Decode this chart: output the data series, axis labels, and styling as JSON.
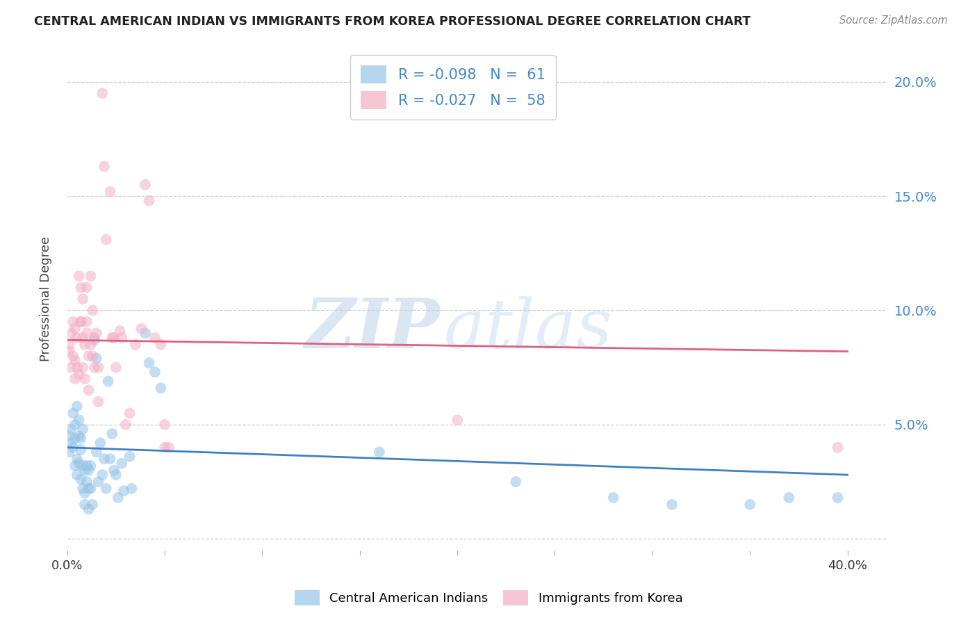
{
  "title": "CENTRAL AMERICAN INDIAN VS IMMIGRANTS FROM KOREA PROFESSIONAL DEGREE CORRELATION CHART",
  "source": "Source: ZipAtlas.com",
  "ylabel": "Professional Degree",
  "yticks": [
    0.0,
    0.05,
    0.1,
    0.15,
    0.2
  ],
  "xlim": [
    0.0,
    0.42
  ],
  "ylim": [
    -0.005,
    0.215
  ],
  "blue_scatter": [
    [
      0.001,
      0.045
    ],
    [
      0.002,
      0.048
    ],
    [
      0.001,
      0.038
    ],
    [
      0.002,
      0.042
    ],
    [
      0.003,
      0.055
    ],
    [
      0.003,
      0.04
    ],
    [
      0.004,
      0.05
    ],
    [
      0.004,
      0.044
    ],
    [
      0.004,
      0.032
    ],
    [
      0.005,
      0.058
    ],
    [
      0.005,
      0.035
    ],
    [
      0.005,
      0.028
    ],
    [
      0.006,
      0.052
    ],
    [
      0.006,
      0.045
    ],
    [
      0.006,
      0.033
    ],
    [
      0.007,
      0.044
    ],
    [
      0.007,
      0.039
    ],
    [
      0.007,
      0.026
    ],
    [
      0.008,
      0.048
    ],
    [
      0.008,
      0.032
    ],
    [
      0.008,
      0.022
    ],
    [
      0.009,
      0.03
    ],
    [
      0.009,
      0.02
    ],
    [
      0.009,
      0.015
    ],
    [
      0.01,
      0.032
    ],
    [
      0.01,
      0.025
    ],
    [
      0.011,
      0.03
    ],
    [
      0.011,
      0.022
    ],
    [
      0.011,
      0.013
    ],
    [
      0.012,
      0.032
    ],
    [
      0.012,
      0.022
    ],
    [
      0.013,
      0.015
    ],
    [
      0.014,
      0.087
    ],
    [
      0.015,
      0.079
    ],
    [
      0.015,
      0.038
    ],
    [
      0.016,
      0.025
    ],
    [
      0.017,
      0.042
    ],
    [
      0.018,
      0.028
    ],
    [
      0.019,
      0.035
    ],
    [
      0.02,
      0.022
    ],
    [
      0.021,
      0.069
    ],
    [
      0.022,
      0.035
    ],
    [
      0.023,
      0.046
    ],
    [
      0.024,
      0.03
    ],
    [
      0.025,
      0.028
    ],
    [
      0.026,
      0.018
    ],
    [
      0.028,
      0.033
    ],
    [
      0.029,
      0.021
    ],
    [
      0.032,
      0.036
    ],
    [
      0.033,
      0.022
    ],
    [
      0.04,
      0.09
    ],
    [
      0.042,
      0.077
    ],
    [
      0.045,
      0.073
    ],
    [
      0.048,
      0.066
    ],
    [
      0.16,
      0.038
    ],
    [
      0.23,
      0.025
    ],
    [
      0.28,
      0.018
    ],
    [
      0.31,
      0.015
    ],
    [
      0.35,
      0.015
    ],
    [
      0.37,
      0.018
    ],
    [
      0.395,
      0.018
    ]
  ],
  "pink_scatter": [
    [
      0.001,
      0.085
    ],
    [
      0.001,
      0.082
    ],
    [
      0.002,
      0.075
    ],
    [
      0.002,
      0.09
    ],
    [
      0.003,
      0.08
    ],
    [
      0.003,
      0.095
    ],
    [
      0.004,
      0.078
    ],
    [
      0.004,
      0.07
    ],
    [
      0.004,
      0.092
    ],
    [
      0.005,
      0.075
    ],
    [
      0.005,
      0.088
    ],
    [
      0.006,
      0.072
    ],
    [
      0.006,
      0.115
    ],
    [
      0.007,
      0.095
    ],
    [
      0.007,
      0.11
    ],
    [
      0.007,
      0.095
    ],
    [
      0.008,
      0.075
    ],
    [
      0.008,
      0.105
    ],
    [
      0.008,
      0.088
    ],
    [
      0.009,
      0.085
    ],
    [
      0.009,
      0.07
    ],
    [
      0.01,
      0.11
    ],
    [
      0.01,
      0.09
    ],
    [
      0.01,
      0.095
    ],
    [
      0.011,
      0.08
    ],
    [
      0.011,
      0.065
    ],
    [
      0.012,
      0.115
    ],
    [
      0.012,
      0.085
    ],
    [
      0.013,
      0.08
    ],
    [
      0.013,
      0.1
    ],
    [
      0.014,
      0.075
    ],
    [
      0.014,
      0.088
    ],
    [
      0.015,
      0.09
    ],
    [
      0.016,
      0.075
    ],
    [
      0.016,
      0.06
    ],
    [
      0.018,
      0.195
    ],
    [
      0.019,
      0.163
    ],
    [
      0.02,
      0.131
    ],
    [
      0.022,
      0.152
    ],
    [
      0.023,
      0.088
    ],
    [
      0.024,
      0.088
    ],
    [
      0.025,
      0.075
    ],
    [
      0.027,
      0.091
    ],
    [
      0.028,
      0.088
    ],
    [
      0.03,
      0.05
    ],
    [
      0.032,
      0.055
    ],
    [
      0.035,
      0.085
    ],
    [
      0.038,
      0.092
    ],
    [
      0.04,
      0.155
    ],
    [
      0.042,
      0.148
    ],
    [
      0.045,
      0.088
    ],
    [
      0.048,
      0.085
    ],
    [
      0.05,
      0.05
    ],
    [
      0.05,
      0.04
    ],
    [
      0.052,
      0.04
    ],
    [
      0.2,
      0.052
    ],
    [
      0.395,
      0.04
    ]
  ],
  "blue_line_x": [
    0.0,
    0.4
  ],
  "blue_line_y_start": 0.04,
  "blue_line_y_end": 0.028,
  "pink_line_x": [
    0.0,
    0.4
  ],
  "pink_line_y_start": 0.087,
  "pink_line_y_end": 0.082,
  "blue_color": "#93c4e8",
  "pink_color": "#f4aec4",
  "blue_line_color": "#4080c0",
  "pink_line_color": "#e06080",
  "watermark_zip": "ZIP",
  "watermark_atlas": "atlas",
  "background_color": "#ffffff",
  "grid_color": "#cccccc",
  "legend_text_color": "#4488cc",
  "right_axis_color": "#4488cc"
}
